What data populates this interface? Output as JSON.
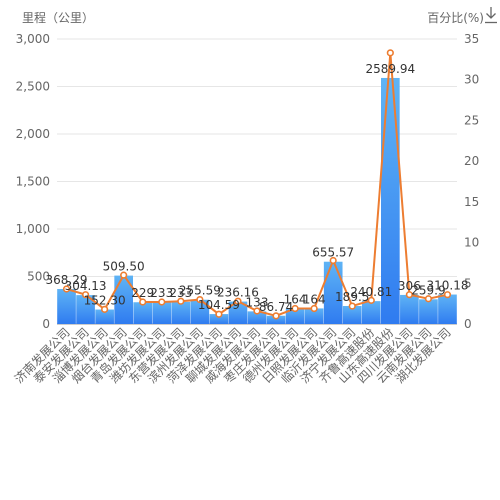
{
  "chart_data": {
    "type": "bar",
    "ylabel": "里程（公里）",
    "ylabel_right": "百分比(%)",
    "categories": [
      "济南发展公司",
      "泰安发展公司",
      "淄博发展公司",
      "烟台发展公司",
      "青岛发展公司",
      "潍坊发展公司",
      "东营发展公司",
      "滨州发展公司",
      "菏泽发展公司",
      "聊城发展公司",
      "威海发展公司",
      "枣庄发展公司",
      "德州发展公司",
      "日照发展公司",
      "临沂发展公司",
      "济宁发展公司",
      "齐鲁高速股份",
      "山东高速股份",
      "四川发展公司",
      "云南发展公司",
      "湖北发展公司"
    ],
    "series": [
      {
        "type": "bar",
        "axis": "left",
        "values": [
          368.29,
          304.13,
          152.3,
          509.5,
          229,
          233,
          233,
          255.59,
          104.59,
          236.16,
          133,
          86.74,
          164,
          164,
          655.57,
          189.5,
          240.81,
          2589.94,
          306,
          259.9,
          310.18
        ],
        "labels": [
          "368.29",
          "304.13",
          "152.30",
          "509.50",
          "229",
          "233",
          "233",
          "255.59",
          "104.59",
          "236.16",
          "133",
          "86.74",
          "164",
          "164",
          "655.57",
          "189.5",
          "240.81",
          "2589.94",
          "306",
          "259.9",
          "310.18"
        ]
      },
      {
        "type": "line",
        "axis": "right",
        "values": [
          4.3,
          3.6,
          1.8,
          6.0,
          2.7,
          2.7,
          2.8,
          3.0,
          1.2,
          2.8,
          1.6,
          1.0,
          1.9,
          1.9,
          7.8,
          2.2,
          2.9,
          33.3,
          3.6,
          3.1,
          3.6
        ]
      }
    ],
    "ylim": [
      0,
      3000
    ],
    "ylim_right": [
      0,
      35
    ],
    "yticks": [
      0,
      500,
      1000,
      1500,
      2000,
      2500,
      3000
    ],
    "ytick_labels": [
      "0",
      "500",
      "1,000",
      "1,500",
      "2,000",
      "2,500",
      "3,000"
    ],
    "yticks_right": [
      0,
      5,
      10,
      15,
      20,
      25,
      30,
      35
    ],
    "grid": true,
    "colors": {
      "bar_top": "#5fb4f5",
      "bar_bottom": "#2f7bf0",
      "line": "#ed7d31",
      "point_fill": "#ffffff",
      "grid": "#e6e6e6",
      "axis_text": "#666666",
      "label_text": "#333333"
    }
  },
  "icons": {
    "download": "download-icon"
  }
}
